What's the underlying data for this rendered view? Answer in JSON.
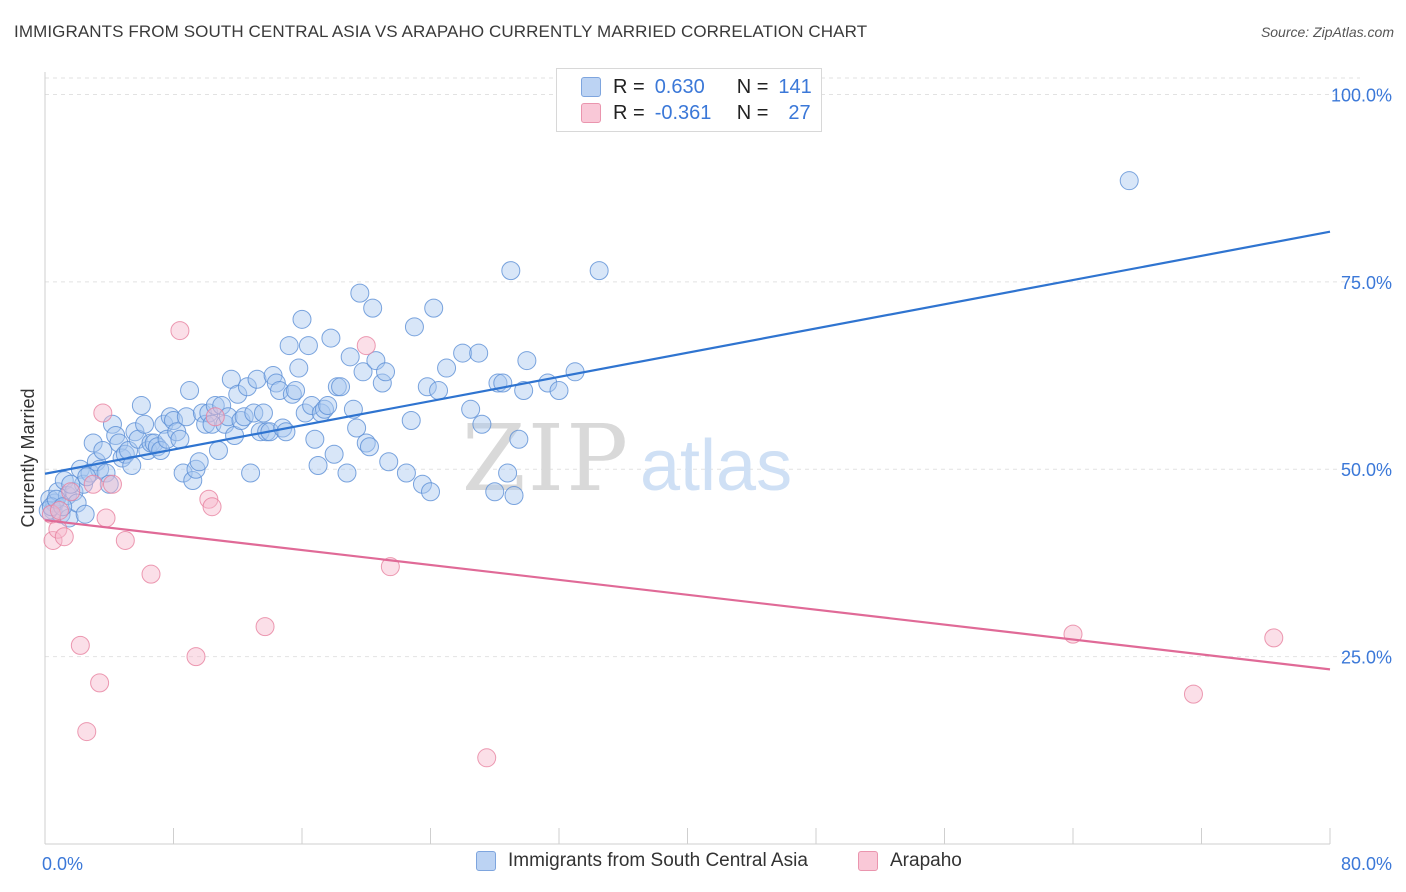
{
  "title": "IMMIGRANTS FROM SOUTH CENTRAL ASIA VS ARAPAHO CURRENTLY MARRIED CORRELATION CHART",
  "source": "Source: ZipAtlas.com",
  "watermark": {
    "zip": "ZIP",
    "atlas": "atlas"
  },
  "legend": {
    "rows": [
      {
        "r_label": "R =",
        "r_value": "0.630",
        "n_label": "N =",
        "n_value": "141"
      },
      {
        "r_label": "R =",
        "r_value": "-0.361",
        "n_label": "N =",
        "n_value": "27"
      }
    ]
  },
  "colors": {
    "blue_fill": "#a9c8f0",
    "blue_stroke": "#5b8fd6",
    "blue_line": "#2f74d0",
    "pink_fill": "#f6b8cc",
    "pink_stroke": "#e7819f",
    "pink_line": "#e06a97",
    "axis_label": "#3b78d8",
    "grid": "#e2e2e2"
  },
  "chart_data": {
    "type": "scatter",
    "title": "IMMIGRANTS FROM SOUTH CENTRAL ASIA VS ARAPAHO CURRENTLY MARRIED CORRELATION CHART",
    "xlabel": "",
    "ylabel": "Currently Married",
    "xlim": [
      0,
      80
    ],
    "ylim": [
      0,
      103
    ],
    "x_tick_labels": [
      "0.0%",
      "80.0%"
    ],
    "y_ticks": [
      25,
      50,
      75,
      100
    ],
    "y_tick_labels": [
      "25.0%",
      "50.0%",
      "75.0%",
      "100.0%"
    ],
    "grid": true,
    "legend_position": "top-center",
    "series": [
      {
        "name": "Immigrants from South Central Asia",
        "r": 0.63,
        "n": 141,
        "trend": {
          "x": [
            0,
            80
          ],
          "y": [
            49.4,
            81.7
          ]
        },
        "points": [
          [
            0.3,
            46
          ],
          [
            0.5,
            44.5
          ],
          [
            0.6,
            45.5
          ],
          [
            0.8,
            47
          ],
          [
            1.0,
            44
          ],
          [
            1.2,
            48.5
          ],
          [
            1.4,
            46.5
          ],
          [
            1.5,
            43.5
          ],
          [
            1.8,
            47
          ],
          [
            2.0,
            45.5
          ],
          [
            2.2,
            50
          ],
          [
            2.4,
            48
          ],
          [
            2.5,
            44
          ],
          [
            2.8,
            49.5
          ],
          [
            3.0,
            53.5
          ],
          [
            3.2,
            51
          ],
          [
            3.4,
            50
          ],
          [
            3.6,
            52.5
          ],
          [
            3.8,
            49.5
          ],
          [
            4.0,
            48
          ],
          [
            4.2,
            56
          ],
          [
            4.4,
            54.5
          ],
          [
            4.6,
            53.5
          ],
          [
            4.8,
            51.5
          ],
          [
            5.0,
            52
          ],
          [
            5.2,
            52.5
          ],
          [
            5.4,
            50.5
          ],
          [
            5.6,
            55
          ],
          [
            5.8,
            54
          ],
          [
            6.0,
            58.5
          ],
          [
            6.2,
            56
          ],
          [
            6.4,
            52.5
          ],
          [
            6.6,
            53.5
          ],
          [
            6.8,
            53.5
          ],
          [
            7.0,
            53
          ],
          [
            7.2,
            52.5
          ],
          [
            7.4,
            56
          ],
          [
            7.6,
            54
          ],
          [
            7.8,
            57
          ],
          [
            8.0,
            56.5
          ],
          [
            8.2,
            55
          ],
          [
            8.4,
            54
          ],
          [
            8.6,
            49.5
          ],
          [
            8.8,
            57
          ],
          [
            9.0,
            60.5
          ],
          [
            9.2,
            48.5
          ],
          [
            9.4,
            50
          ],
          [
            9.6,
            51
          ],
          [
            9.8,
            57.5
          ],
          [
            10.0,
            56
          ],
          [
            10.2,
            57.5
          ],
          [
            10.4,
            56
          ],
          [
            10.6,
            58.5
          ],
          [
            10.8,
            52.5
          ],
          [
            11.0,
            58.5
          ],
          [
            11.2,
            56
          ],
          [
            11.4,
            57
          ],
          [
            11.6,
            62
          ],
          [
            11.8,
            54.5
          ],
          [
            12.0,
            60
          ],
          [
            12.2,
            56.5
          ],
          [
            12.4,
            57
          ],
          [
            12.6,
            61
          ],
          [
            12.8,
            49.5
          ],
          [
            13.0,
            57.5
          ],
          [
            13.2,
            62
          ],
          [
            13.4,
            55
          ],
          [
            13.6,
            57.5
          ],
          [
            13.8,
            55
          ],
          [
            14.0,
            55
          ],
          [
            14.2,
            62.5
          ],
          [
            14.4,
            61.5
          ],
          [
            14.6,
            60.5
          ],
          [
            14.8,
            55.5
          ],
          [
            15.0,
            55
          ],
          [
            15.2,
            66.5
          ],
          [
            15.4,
            60
          ],
          [
            15.6,
            60.5
          ],
          [
            15.8,
            63.5
          ],
          [
            16.0,
            70
          ],
          [
            16.2,
            57.5
          ],
          [
            16.4,
            66.5
          ],
          [
            16.6,
            58.5
          ],
          [
            16.8,
            54
          ],
          [
            17.0,
            50.5
          ],
          [
            17.2,
            57.5
          ],
          [
            17.4,
            58
          ],
          [
            17.6,
            58.5
          ],
          [
            17.8,
            67.5
          ],
          [
            18.0,
            52
          ],
          [
            18.2,
            61
          ],
          [
            18.4,
            61
          ],
          [
            18.8,
            49.5
          ],
          [
            19.0,
            65
          ],
          [
            19.2,
            58
          ],
          [
            19.4,
            55.5
          ],
          [
            19.6,
            73.5
          ],
          [
            19.8,
            63
          ],
          [
            20.0,
            53.5
          ],
          [
            20.2,
            53
          ],
          [
            20.4,
            71.5
          ],
          [
            20.6,
            64.5
          ],
          [
            21.0,
            61.5
          ],
          [
            21.2,
            63
          ],
          [
            21.4,
            51
          ],
          [
            22.5,
            49.5
          ],
          [
            22.8,
            56.5
          ],
          [
            23.0,
            69
          ],
          [
            23.5,
            48
          ],
          [
            23.8,
            61
          ],
          [
            24.0,
            47
          ],
          [
            24.2,
            71.5
          ],
          [
            24.5,
            60.5
          ],
          [
            25.0,
            63.5
          ],
          [
            26.0,
            65.5
          ],
          [
            26.5,
            58
          ],
          [
            27.0,
            65.5
          ],
          [
            27.2,
            56
          ],
          [
            28.0,
            47
          ],
          [
            28.2,
            61.5
          ],
          [
            28.5,
            61.5
          ],
          [
            28.8,
            49.5
          ],
          [
            29.0,
            76.5
          ],
          [
            29.2,
            46.5
          ],
          [
            29.5,
            54
          ],
          [
            29.8,
            60.5
          ],
          [
            30.0,
            64.5
          ],
          [
            31.3,
            61.5
          ],
          [
            32.0,
            60.5
          ],
          [
            33.0,
            63
          ],
          [
            34.5,
            76.5
          ],
          [
            67.5,
            88.5
          ],
          [
            0.2,
            44.5
          ],
          [
            0.4,
            45
          ],
          [
            0.7,
            46
          ],
          [
            1.1,
            45
          ],
          [
            1.6,
            48
          ],
          [
            2.6,
            49
          ]
        ]
      },
      {
        "name": "Arapaho",
        "r": -0.361,
        "n": 27,
        "trend": {
          "x": [
            0,
            80
          ],
          "y": [
            43.2,
            23.3
          ]
        },
        "points": [
          [
            0.4,
            44
          ],
          [
            0.5,
            40.5
          ],
          [
            0.8,
            42
          ],
          [
            1.2,
            41
          ],
          [
            1.6,
            47
          ],
          [
            2.2,
            26.5
          ],
          [
            2.6,
            15
          ],
          [
            3.0,
            48
          ],
          [
            3.4,
            21.5
          ],
          [
            3.6,
            57.5
          ],
          [
            3.8,
            43.5
          ],
          [
            4.2,
            48
          ],
          [
            5.0,
            40.5
          ],
          [
            6.6,
            36
          ],
          [
            8.4,
            68.5
          ],
          [
            9.4,
            25
          ],
          [
            10.2,
            46
          ],
          [
            10.4,
            45
          ],
          [
            10.6,
            57
          ],
          [
            13.7,
            29
          ],
          [
            20.0,
            66.5
          ],
          [
            21.5,
            37
          ],
          [
            27.5,
            11.5
          ],
          [
            64.0,
            28
          ],
          [
            71.5,
            20
          ],
          [
            76.5,
            27.5
          ],
          [
            0.9,
            44.5
          ]
        ]
      }
    ]
  }
}
